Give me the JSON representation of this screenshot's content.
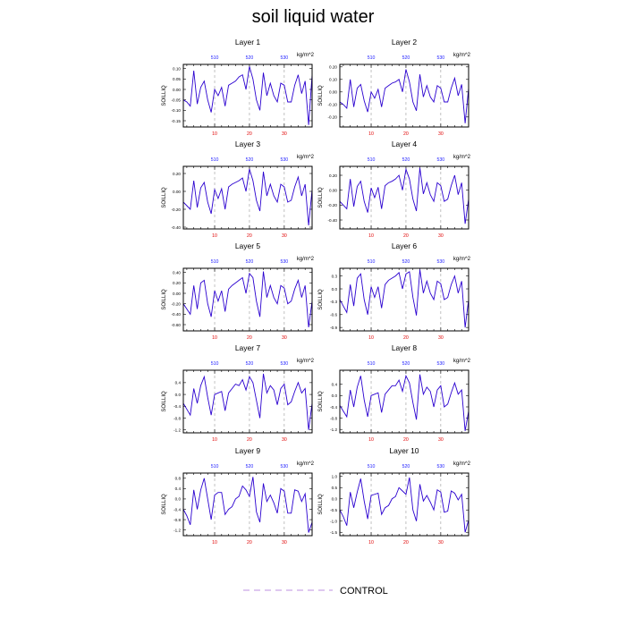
{
  "title": "soil liquid water",
  "legend": {
    "label": "CONTROL",
    "color": "#c9a7e8",
    "style": "dashed"
  },
  "colors": {
    "series": "#2a00d0",
    "top_ticks": "#1a1aff",
    "bottom_ticks": "#e00000",
    "grid": "#999999"
  },
  "chart_data": {
    "type": "line",
    "ylabel": "SOILLIQ",
    "units": "kg/m^2",
    "x": [
      1,
      2,
      3,
      4,
      5,
      6,
      7,
      8,
      9,
      10,
      11,
      12,
      13,
      14,
      15,
      16,
      17,
      18,
      19,
      20,
      21,
      22,
      23,
      24,
      25,
      26,
      27,
      28,
      29,
      30,
      31,
      32,
      33,
      34,
      35,
      36,
      37,
      38
    ],
    "xlim": [
      1,
      38
    ],
    "bottom_ticks": [
      "10",
      "20",
      "30"
    ],
    "bottom_tick_values": [
      10,
      20,
      30
    ],
    "top_ticks": [
      "510",
      "520",
      "530"
    ],
    "top_tick_values": [
      10,
      20,
      30
    ],
    "panels": [
      {
        "title": "Layer 1",
        "ylim": [
          -0.18,
          0.12
        ],
        "yticks": [
          0.1,
          0.05,
          0.0,
          -0.05,
          -0.1,
          -0.15
        ],
        "ytick_labels": [
          "0.10",
          "0.05",
          "0.00",
          "-0.05",
          "-0.10",
          "-0.15"
        ],
        "values": [
          -0.05,
          -0.06,
          -0.08,
          0.09,
          -0.07,
          0.01,
          0.04,
          -0.05,
          -0.11,
          0.0,
          -0.03,
          0.01,
          -0.08,
          0.02,
          0.03,
          0.04,
          0.06,
          0.07,
          0.0,
          0.11,
          0.05,
          -0.05,
          -0.1,
          0.08,
          -0.03,
          0.03,
          -0.03,
          -0.06,
          0.03,
          0.02,
          -0.06,
          -0.06,
          0.02,
          0.07,
          -0.02,
          0.04,
          -0.17,
          0.07
        ]
      },
      {
        "title": "Layer 2",
        "ylim": [
          -0.28,
          0.22
        ],
        "yticks": [
          0.2,
          0.1,
          0.0,
          -0.1,
          -0.2
        ],
        "ytick_labels": [
          "0.20",
          "0.10",
          "0.00",
          "-0.10",
          "-0.20"
        ],
        "values": [
          -0.08,
          -0.1,
          -0.13,
          0.1,
          -0.12,
          0.03,
          0.06,
          -0.07,
          -0.16,
          0.0,
          -0.05,
          0.02,
          -0.12,
          0.03,
          0.05,
          0.07,
          0.08,
          0.1,
          0.0,
          0.18,
          0.08,
          -0.08,
          -0.15,
          0.14,
          -0.04,
          0.05,
          -0.04,
          -0.08,
          0.05,
          0.03,
          -0.08,
          -0.08,
          0.03,
          0.11,
          -0.03,
          0.06,
          -0.25,
          0.03
        ]
      },
      {
        "title": "Layer 3",
        "ylim": [
          -0.42,
          0.28
        ],
        "yticks": [
          0.2,
          0.0,
          -0.2,
          -0.4
        ],
        "ytick_labels": [
          "0.20",
          "0.00",
          "-0.20",
          "-0.40"
        ],
        "values": [
          -0.12,
          -0.16,
          -0.2,
          0.12,
          -0.18,
          0.04,
          0.1,
          -0.12,
          -0.25,
          0.02,
          -0.08,
          0.03,
          -0.2,
          0.05,
          0.08,
          0.1,
          0.12,
          0.15,
          0.0,
          0.25,
          0.12,
          -0.1,
          -0.22,
          0.22,
          -0.05,
          0.08,
          -0.05,
          -0.12,
          0.08,
          0.05,
          -0.12,
          -0.1,
          0.05,
          0.16,
          -0.05,
          0.08,
          -0.38,
          0.02
        ]
      },
      {
        "title": "Layer 4",
        "ylim": [
          -0.52,
          0.32
        ],
        "yticks": [
          0.2,
          0.0,
          -0.2,
          -0.4
        ],
        "ytick_labels": [
          "0.20",
          "0.00",
          "-0.20",
          "-0.40"
        ],
        "values": [
          -0.15,
          -0.2,
          -0.25,
          0.15,
          -0.22,
          0.05,
          0.12,
          -0.15,
          -0.3,
          0.03,
          -0.1,
          0.04,
          -0.25,
          0.06,
          0.1,
          0.12,
          0.15,
          0.2,
          0.0,
          0.28,
          0.15,
          -0.12,
          -0.28,
          0.3,
          -0.05,
          0.1,
          -0.06,
          -0.15,
          0.1,
          0.06,
          -0.15,
          -0.12,
          0.06,
          0.2,
          -0.06,
          0.1,
          -0.45,
          -0.12
        ]
      },
      {
        "title": "Layer 5",
        "ylim": [
          -0.72,
          0.48
        ],
        "yticks": [
          0.4,
          0.2,
          0.0,
          -0.2,
          -0.4,
          -0.6
        ],
        "ytick_labels": [
          "0.40",
          "0.20",
          "0.00",
          "-0.20",
          "-0.40",
          "-0.60"
        ],
        "values": [
          -0.2,
          -0.3,
          -0.4,
          0.15,
          -0.3,
          0.2,
          0.25,
          -0.2,
          -0.45,
          0.05,
          -0.15,
          0.05,
          -0.35,
          0.08,
          0.15,
          0.2,
          0.25,
          0.3,
          0.0,
          0.38,
          0.3,
          -0.15,
          -0.45,
          0.42,
          -0.08,
          0.15,
          -0.08,
          -0.2,
          0.15,
          0.1,
          -0.2,
          -0.15,
          0.08,
          0.25,
          -0.08,
          0.15,
          -0.65,
          -0.15
        ]
      },
      {
        "title": "Layer 6",
        "ylim": [
          -0.98,
          0.48
        ],
        "yticks": [
          0.3,
          0.0,
          -0.3,
          -0.6,
          -0.9
        ],
        "ytick_labels": [
          "0.3",
          "0.0",
          "-0.3",
          "-0.6",
          "-0.9"
        ],
        "values": [
          -0.25,
          -0.4,
          -0.55,
          0.1,
          -0.4,
          0.25,
          0.35,
          -0.25,
          -0.6,
          0.05,
          -0.2,
          0.05,
          -0.45,
          0.1,
          0.2,
          0.25,
          0.3,
          0.38,
          0.0,
          0.35,
          0.4,
          -0.2,
          -0.62,
          0.45,
          -0.1,
          0.18,
          -0.1,
          -0.25,
          0.18,
          0.12,
          -0.25,
          -0.2,
          0.1,
          0.3,
          -0.1,
          0.18,
          -0.9,
          -0.25
        ]
      },
      {
        "title": "Layer 7",
        "ylim": [
          -1.3,
          0.82
        ],
        "yticks": [
          0.4,
          0.0,
          -0.4,
          -0.8,
          -1.2
        ],
        "ytick_labels": [
          "0.4",
          "0.0",
          "-0.4",
          "-0.8",
          "-1.2"
        ],
        "values": [
          -0.3,
          -0.5,
          -0.7,
          0.2,
          -0.3,
          0.3,
          0.6,
          -0.1,
          -0.7,
          0.0,
          0.05,
          0.1,
          -0.55,
          0.05,
          0.2,
          0.35,
          0.3,
          0.5,
          0.15,
          0.6,
          0.4,
          -0.2,
          -0.8,
          0.7,
          0.05,
          0.3,
          0.15,
          -0.35,
          0.2,
          0.35,
          -0.35,
          -0.25,
          0.1,
          0.4,
          0.05,
          0.2,
          -1.2,
          -0.3
        ]
      },
      {
        "title": "Layer 8",
        "ylim": [
          -1.32,
          0.9
        ],
        "yticks": [
          0.4,
          0.0,
          -0.4,
          -0.8,
          -1.2
        ],
        "ytick_labels": [
          "0.4",
          "0.0",
          "-0.4",
          "-0.8",
          "-1.2"
        ],
        "values": [
          -0.35,
          -0.55,
          -0.75,
          0.2,
          -0.4,
          0.3,
          0.7,
          -0.15,
          -0.75,
          0.0,
          0.05,
          0.1,
          -0.6,
          0.05,
          0.2,
          0.35,
          0.35,
          0.55,
          0.15,
          0.7,
          0.45,
          -0.25,
          -0.85,
          0.75,
          0.05,
          0.3,
          0.15,
          -0.4,
          0.2,
          0.35,
          -0.4,
          -0.3,
          0.1,
          0.45,
          0.05,
          0.2,
          -1.25,
          -0.55
        ]
      },
      {
        "title": "Layer 9",
        "ylim": [
          -1.42,
          1.0
        ],
        "yticks": [
          0.8,
          0.4,
          0.0,
          -0.4,
          -0.8,
          -1.2
        ],
        "ytick_labels": [
          "0.8",
          "0.4",
          "0.0",
          "-0.4",
          "-0.8",
          "-1.2"
        ],
        "values": [
          -0.4,
          -0.65,
          -1.0,
          0.35,
          -0.4,
          0.35,
          0.8,
          0.0,
          -0.8,
          0.15,
          0.25,
          0.25,
          -0.6,
          -0.4,
          -0.3,
          0.0,
          0.1,
          0.5,
          0.35,
          0.1,
          0.85,
          -0.5,
          -0.9,
          0.6,
          -0.1,
          0.15,
          -0.15,
          -0.55,
          0.4,
          0.3,
          -0.55,
          -0.55,
          0.35,
          0.3,
          -0.1,
          0.2,
          -1.3,
          -0.9
        ]
      },
      {
        "title": "Layer 10",
        "ylim": [
          -1.65,
          1.15
        ],
        "yticks": [
          1.0,
          0.5,
          0.0,
          -0.5,
          -1.0,
          -1.5
        ],
        "ytick_labels": [
          "1.0",
          "0.5",
          "0.0",
          "-0.5",
          "-1.0",
          "-1.5"
        ],
        "values": [
          -0.5,
          -0.8,
          -1.2,
          0.3,
          -0.4,
          0.3,
          0.9,
          -0.1,
          -0.9,
          0.15,
          0.2,
          0.25,
          -0.7,
          -0.4,
          -0.3,
          0.0,
          0.1,
          0.5,
          0.35,
          0.2,
          0.95,
          -0.5,
          -1.0,
          0.65,
          -0.1,
          0.15,
          -0.15,
          -0.5,
          0.4,
          0.3,
          -0.6,
          -0.55,
          0.35,
          0.25,
          -0.05,
          0.2,
          -1.5,
          -0.95
        ]
      }
    ]
  }
}
